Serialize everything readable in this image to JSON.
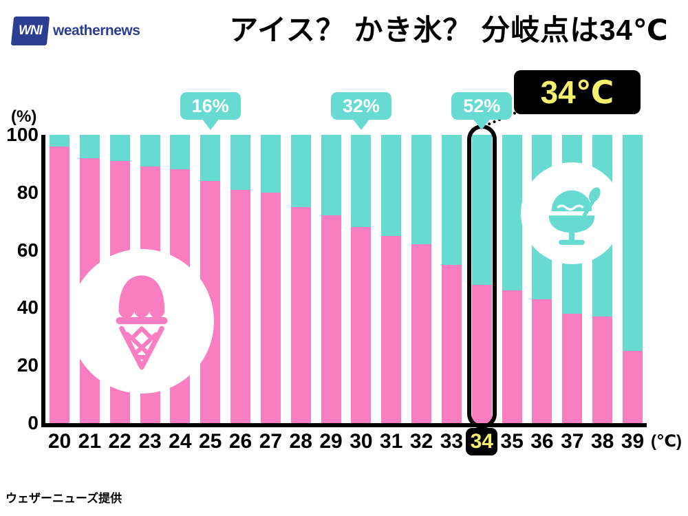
{
  "header": {
    "title": "アイス？ かき氷？ 分岐点は34℃",
    "logo_mark": "WNI",
    "logo_text": "weathernews"
  },
  "footer": {
    "credit": "ウェザーニューズ提供"
  },
  "colors": {
    "ice_pink": "#F97EC1",
    "shave_cyan": "#67DAD2",
    "highlight_bg": "#000000",
    "highlight_text": "#F5F06E",
    "logo_blue": "#2B3E92"
  },
  "chart_data": {
    "type": "bar",
    "stacked": true,
    "title": "アイス？ かき氷？ 分岐点は34℃",
    "ylabel": "(%)",
    "xlabel": "(℃)",
    "ylim": [
      0,
      100
    ],
    "yticks": [
      0,
      20,
      40,
      60,
      80,
      100
    ],
    "grid": false,
    "legend": "none",
    "categories": [
      "20",
      "21",
      "22",
      "23",
      "24",
      "25",
      "26",
      "27",
      "28",
      "29",
      "30",
      "31",
      "32",
      "33",
      "34",
      "35",
      "36",
      "37",
      "38",
      "39"
    ],
    "series": [
      {
        "name": "アイス (ice cream)",
        "color": "#F97EC1",
        "values": [
          96,
          92,
          91,
          89,
          88,
          84,
          81,
          80,
          75,
          72,
          68,
          65,
          62,
          55,
          48,
          46,
          43,
          38,
          37,
          25
        ]
      },
      {
        "name": "かき氷 (shaved ice)",
        "color": "#67DAD2",
        "values": [
          4,
          8,
          9,
          11,
          12,
          16,
          19,
          20,
          25,
          28,
          32,
          35,
          38,
          45,
          52,
          54,
          57,
          62,
          63,
          75
        ]
      }
    ],
    "annotations": [
      {
        "label": "16%",
        "category": "25"
      },
      {
        "label": "32%",
        "category": "30"
      },
      {
        "label": "52%",
        "category": "34"
      }
    ],
    "highlight": {
      "category": "34",
      "badge": "34℃"
    }
  }
}
